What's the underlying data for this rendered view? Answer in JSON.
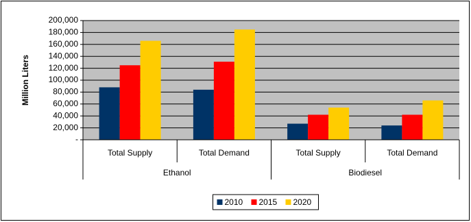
{
  "chart_data": {
    "type": "bar",
    "y_label": "Million Liters",
    "groups": [
      {
        "label": "Ethanol",
        "categories": [
          "Total Supply",
          "Total Demand"
        ]
      },
      {
        "label": "Biodiesel",
        "categories": [
          "Total Supply",
          "Total Demand"
        ]
      }
    ],
    "series": [
      {
        "name": "2010",
        "color": "#003366",
        "values": [
          88000,
          84000,
          27000,
          24000
        ]
      },
      {
        "name": "2015",
        "color": "#ff0000",
        "values": [
          125000,
          131000,
          42000,
          42000
        ]
      },
      {
        "name": "2020",
        "color": "#ffcc00",
        "values": [
          166000,
          185000,
          54000,
          66000
        ]
      }
    ],
    "ylim": [
      0,
      200000
    ],
    "yticks": [
      {
        "value": 0,
        "label": "-"
      },
      {
        "value": 20000,
        "label": "20,000"
      },
      {
        "value": 40000,
        "label": "40,000"
      },
      {
        "value": 60000,
        "label": "60,000"
      },
      {
        "value": 80000,
        "label": "80,000"
      },
      {
        "value": 100000,
        "label": "100,000"
      },
      {
        "value": 120000,
        "label": "120,000"
      },
      {
        "value": 140000,
        "label": "140,000"
      },
      {
        "value": 160000,
        "label": "160,000"
      },
      {
        "value": 180000,
        "label": "180,000"
      },
      {
        "value": 200000,
        "label": "200,000"
      }
    ],
    "grid": true,
    "plot_background": "#c0c0c0",
    "legend": "bottom"
  }
}
